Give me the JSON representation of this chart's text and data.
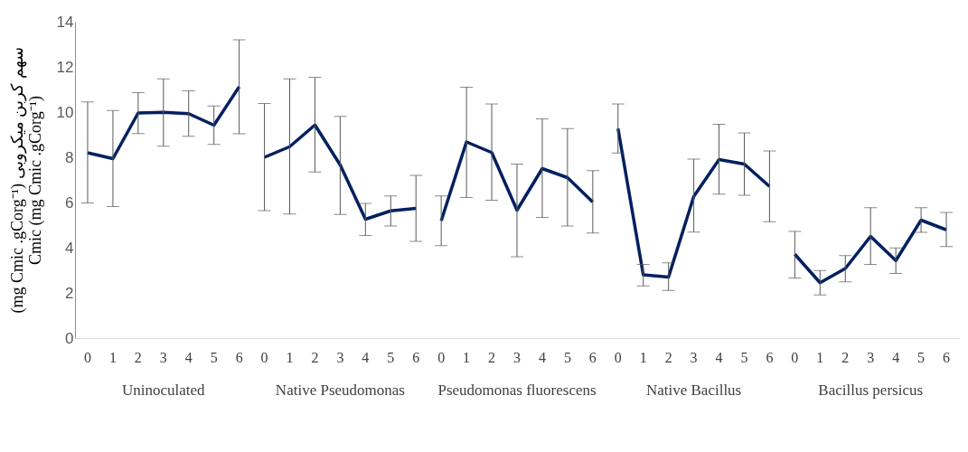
{
  "chart_data": {
    "type": "line",
    "ylabel": "(mg Cmic .gCorg⁻¹) سهم کربن میکروبی\nCmic (mg Cmic .gCorg⁻¹)",
    "categories": [
      "0",
      "1",
      "2",
      "3",
      "4",
      "5",
      "6",
      "0",
      "1",
      "2",
      "3",
      "4",
      "5",
      "6",
      "0",
      "1",
      "2",
      "3",
      "4",
      "5",
      "6",
      "0",
      "1",
      "2",
      "3",
      "4",
      "5",
      "6",
      "0",
      "1",
      "2",
      "3",
      "4",
      "5",
      "6"
    ],
    "annotations": [
      "Uninoculated",
      "Native Pseudomonas",
      "Pseudomonas fluorescens",
      "Native Bacillus",
      "Bacillus persicus"
    ],
    "ylim": [
      0,
      14
    ],
    "yticks": [
      0,
      2,
      4,
      6,
      8,
      10,
      12,
      14
    ],
    "grid": false,
    "legend": false,
    "marker": "none",
    "line_style": "solid",
    "series": [
      {
        "color": "#002060",
        "values": [
          8.2,
          7.94,
          9.96,
          9.99,
          9.93,
          9.42,
          11.12,
          null,
          null,
          null,
          null,
          null,
          null,
          null,
          null,
          null,
          null,
          null,
          null,
          null,
          null,
          null,
          null,
          null,
          null,
          null,
          null,
          null,
          null,
          null,
          null,
          null,
          null,
          null,
          null
        ],
        "errors": [
          [
            5.98,
            10.45
          ],
          [
            5.82,
            10.07
          ],
          [
            9.05,
            10.86
          ],
          [
            8.49,
            11.47
          ],
          [
            8.93,
            10.94
          ],
          [
            8.57,
            10.27
          ],
          [
            9.04,
            13.2
          ],
          null,
          null,
          null,
          null,
          null,
          null,
          null,
          null,
          null,
          null,
          null,
          null,
          null,
          null,
          null,
          null,
          null,
          null,
          null,
          null,
          null,
          null,
          null,
          null,
          null,
          null,
          null,
          null
        ]
      },
      {
        "color": "#002060",
        "values": [
          null,
          null,
          null,
          null,
          null,
          null,
          null,
          8.0,
          8.47,
          9.43,
          7.66,
          5.26,
          5.63,
          5.74,
          null,
          null,
          null,
          null,
          null,
          null,
          null,
          null,
          null,
          null,
          null,
          null,
          null,
          null,
          null,
          null,
          null,
          null,
          null,
          null,
          null
        ],
        "errors": [
          null,
          null,
          null,
          null,
          null,
          null,
          null,
          [
            5.64,
            10.38
          ],
          [
            5.49,
            11.47
          ],
          [
            7.35,
            11.54
          ],
          [
            5.47,
            9.81
          ],
          [
            4.54,
            5.96
          ],
          [
            4.96,
            6.29
          ],
          [
            4.28,
            7.2
          ],
          null,
          null,
          null,
          null,
          null,
          null,
          null,
          null,
          null,
          null,
          null,
          null,
          null,
          null,
          null,
          null,
          null,
          null,
          null,
          null,
          null
        ]
      },
      {
        "color": "#002060",
        "values": [
          null,
          null,
          null,
          null,
          null,
          null,
          null,
          null,
          null,
          null,
          null,
          null,
          null,
          null,
          5.19,
          8.68,
          8.21,
          5.66,
          7.5,
          7.1,
          6.02,
          null,
          null,
          null,
          null,
          null,
          null,
          null,
          null,
          null,
          null,
          null,
          null,
          null,
          null
        ],
        "errors": [
          null,
          null,
          null,
          null,
          null,
          null,
          null,
          null,
          null,
          null,
          null,
          null,
          null,
          null,
          [
            4.09,
            6.29
          ],
          [
            6.22,
            11.1
          ],
          [
            6.1,
            10.36
          ],
          [
            3.6,
            7.7
          ],
          [
            5.34,
            9.7
          ],
          [
            4.96,
            9.27
          ],
          [
            4.65,
            7.41
          ],
          null,
          null,
          null,
          null,
          null,
          null,
          null,
          null,
          null,
          null,
          null,
          null,
          null,
          null
        ]
      },
      {
        "color": "#002060",
        "values": [
          null,
          null,
          null,
          null,
          null,
          null,
          null,
          null,
          null,
          null,
          null,
          null,
          null,
          null,
          null,
          null,
          null,
          null,
          null,
          null,
          null,
          9.27,
          2.8,
          2.7,
          6.27,
          7.9,
          7.7,
          6.71,
          null,
          null,
          null,
          null,
          null,
          null,
          null
        ],
        "errors": [
          null,
          null,
          null,
          null,
          null,
          null,
          null,
          null,
          null,
          null,
          null,
          null,
          null,
          null,
          null,
          null,
          null,
          null,
          null,
          null,
          null,
          [
            8.19,
            10.36
          ],
          [
            2.31,
            3.26
          ],
          [
            2.11,
            3.33
          ],
          [
            4.69,
            7.92
          ],
          [
            6.37,
            9.46
          ],
          [
            6.32,
            9.08
          ],
          [
            5.15,
            8.28
          ],
          null,
          null,
          null,
          null,
          null,
          null,
          null
        ]
      },
      {
        "color": "#002060",
        "values": [
          null,
          null,
          null,
          null,
          null,
          null,
          null,
          null,
          null,
          null,
          null,
          null,
          null,
          null,
          null,
          null,
          null,
          null,
          null,
          null,
          null,
          null,
          null,
          null,
          null,
          null,
          null,
          null,
          3.71,
          2.45,
          3.08,
          4.5,
          3.43,
          5.22,
          4.79
        ],
        "errors": [
          null,
          null,
          null,
          null,
          null,
          null,
          null,
          null,
          null,
          null,
          null,
          null,
          null,
          null,
          null,
          null,
          null,
          null,
          null,
          null,
          null,
          null,
          null,
          null,
          null,
          null,
          null,
          null,
          [
            2.66,
            4.72
          ],
          [
            1.91,
            2.99
          ],
          [
            2.49,
            3.65
          ],
          [
            3.26,
            5.77
          ],
          [
            2.86,
            3.99
          ],
          [
            4.68,
            5.77
          ],
          [
            4.05,
            5.56
          ]
        ]
      }
    ]
  }
}
